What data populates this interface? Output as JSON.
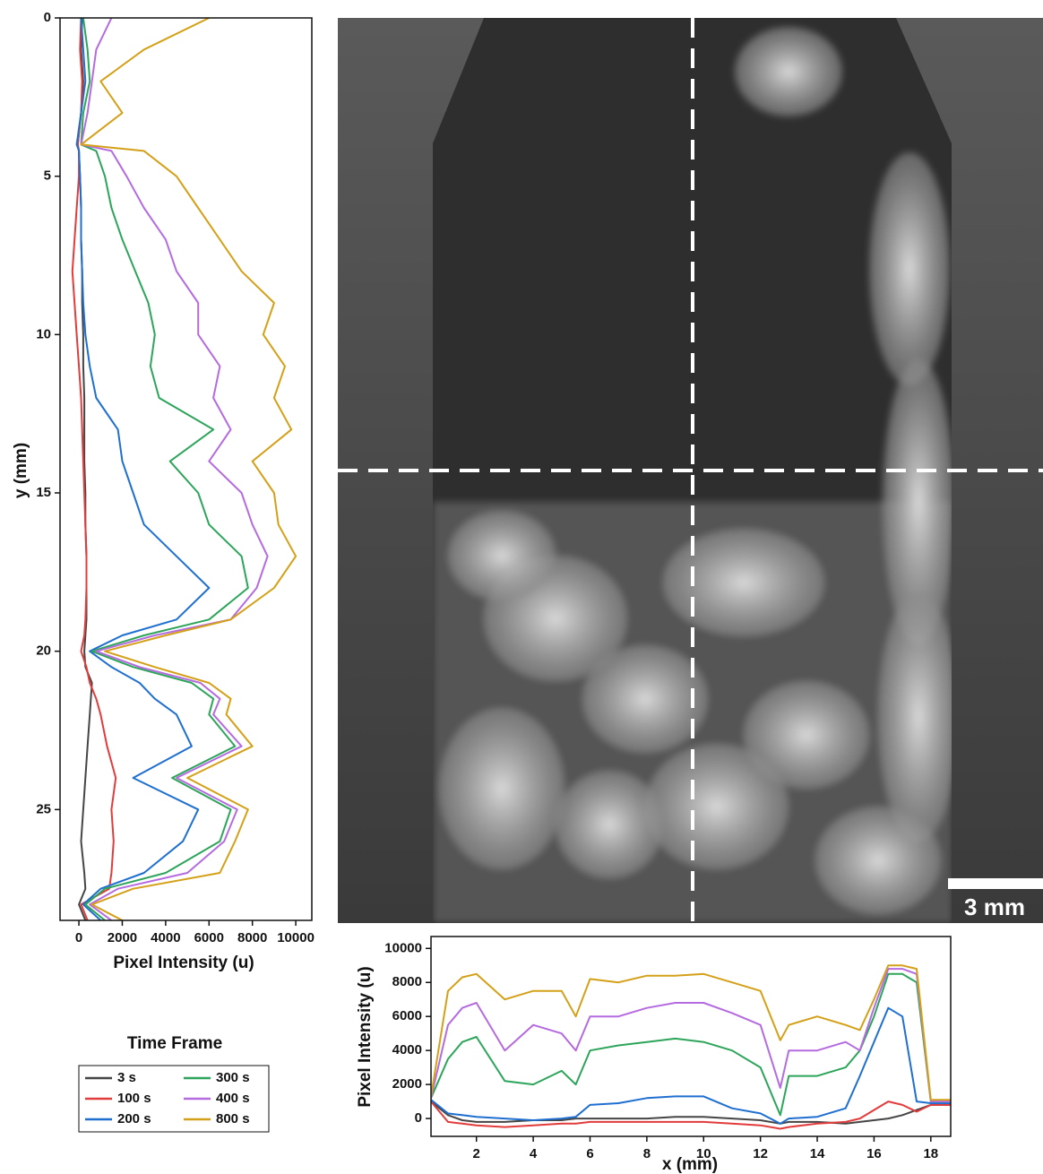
{
  "chart_data": [
    {
      "type": "line",
      "x_label": "Pixel Intensity (u)",
      "y_label": "y (mm)",
      "y": [
        0,
        1,
        2,
        3,
        4,
        4.2,
        5,
        6,
        7,
        8,
        9,
        10,
        11,
        12,
        13,
        14,
        15,
        16,
        17,
        18,
        19,
        19.5,
        20,
        20.5,
        21,
        21.5,
        22,
        23,
        24,
        25,
        26,
        27,
        27.5,
        28,
        28.5
      ],
      "xlim": [
        -870,
        10740
      ],
      "xticks": [
        0,
        2000,
        4000,
        6000,
        8000,
        10000
      ],
      "ylim": [
        0,
        28.5
      ],
      "yticks": [
        0,
        5,
        10,
        15,
        20,
        25
      ],
      "invert_y": true,
      "legend_title": "Time Frame",
      "series": [
        {
          "name": "3 s",
          "color": "#454545",
          "values": [
            150,
            100,
            200,
            100,
            -50,
            0,
            50,
            100,
            100,
            150,
            150,
            200,
            200,
            250,
            250,
            250,
            300,
            300,
            350,
            350,
            350,
            300,
            250,
            300,
            600,
            550,
            500,
            400,
            300,
            200,
            100,
            250,
            300,
            0,
            300
          ]
        },
        {
          "name": "100 s",
          "color": "#e23b3b",
          "values": [
            100,
            50,
            150,
            100,
            -50,
            0,
            0,
            -100,
            -200,
            -300,
            -200,
            -100,
            0,
            100,
            150,
            200,
            250,
            300,
            350,
            350,
            300,
            250,
            100,
            350,
            500,
            800,
            1000,
            1300,
            1700,
            1500,
            1600,
            1500,
            1400,
            100,
            400
          ]
        },
        {
          "name": "200 s",
          "color": "#1f6fd0",
          "values": [
            100,
            200,
            300,
            100,
            -100,
            0,
            50,
            100,
            100,
            150,
            200,
            300,
            500,
            800,
            1800,
            2000,
            2500,
            3000,
            4500,
            6000,
            4500,
            2000,
            500,
            1500,
            2800,
            3500,
            4500,
            5200,
            2500,
            5500,
            4800,
            3000,
            1000,
            200,
            1000
          ]
        },
        {
          "name": "300 s",
          "color": "#2ca55a",
          "values": [
            200,
            400,
            500,
            200,
            100,
            800,
            1200,
            1500,
            2000,
            2600,
            3200,
            3500,
            3300,
            3700,
            6200,
            4200,
            5500,
            6000,
            7500,
            7800,
            6000,
            3000,
            600,
            2500,
            5200,
            6200,
            6000,
            7200,
            4300,
            7000,
            6500,
            4000,
            1200,
            300,
            1200
          ]
        },
        {
          "name": "400 s",
          "color": "#b56be0",
          "values": [
            1500,
            800,
            600,
            400,
            100,
            1500,
            2200,
            3000,
            4000,
            4500,
            5500,
            5500,
            6500,
            6200,
            7000,
            6000,
            7500,
            8000,
            8700,
            8200,
            7000,
            3500,
            800,
            2800,
            5600,
            6500,
            6200,
            7500,
            4500,
            7300,
            6700,
            5000,
            1800,
            500,
            1500
          ]
        },
        {
          "name": "800 s",
          "color": "#d4a017",
          "values": [
            6000,
            3000,
            1000,
            2000,
            100,
            3000,
            4500,
            5500,
            6500,
            7500,
            9000,
            8500,
            9500,
            9000,
            9800,
            8000,
            9000,
            9200,
            10000,
            9000,
            7000,
            4000,
            1200,
            3500,
            6000,
            7000,
            6800,
            8000,
            5000,
            7800,
            7200,
            6500,
            2500,
            600,
            2000
          ]
        }
      ]
    },
    {
      "type": "line",
      "x_label": "x (mm)",
      "y_label": "Pixel Intensity (u)",
      "x": [
        0.4,
        1,
        1.5,
        2,
        3,
        4,
        5,
        5.5,
        6,
        7,
        8,
        9,
        10,
        11,
        12,
        12.7,
        13,
        14,
        15,
        15.5,
        16,
        16.5,
        17,
        17.5,
        18,
        18.7
      ],
      "xlim": [
        0.4,
        18.7
      ],
      "xticks": [
        2,
        4,
        6,
        8,
        10,
        12,
        14,
        16,
        18
      ],
      "ylim": [
        -1050,
        10700
      ],
      "yticks": [
        0,
        2000,
        4000,
        6000,
        8000,
        10000
      ],
      "series": [
        {
          "color": "#454545",
          "values": [
            1000,
            200,
            -100,
            -200,
            -200,
            -100,
            -100,
            0,
            0,
            0,
            0,
            100,
            100,
            0,
            -100,
            -300,
            -200,
            -200,
            -300,
            -200,
            -100,
            0,
            200,
            500,
            800,
            800
          ]
        },
        {
          "color": "#e23b3b",
          "values": [
            1000,
            -200,
            -300,
            -400,
            -500,
            -400,
            -300,
            -300,
            -200,
            -200,
            -200,
            -200,
            -200,
            -300,
            -400,
            -600,
            -500,
            -300,
            -200,
            0,
            500,
            1000,
            800,
            400,
            800,
            800
          ]
        },
        {
          "color": "#1f6fd0",
          "values": [
            1100,
            300,
            200,
            100,
            0,
            -100,
            0,
            100,
            800,
            900,
            1200,
            1300,
            1300,
            600,
            300,
            -300,
            0,
            100,
            600,
            2500,
            4500,
            6500,
            6000,
            1000,
            900,
            900
          ]
        },
        {
          "color": "#2ca55a",
          "values": [
            1200,
            3500,
            4500,
            4800,
            2200,
            2000,
            2800,
            2000,
            4000,
            4300,
            4500,
            4700,
            4500,
            4000,
            3000,
            200,
            2500,
            2500,
            3000,
            4000,
            6000,
            8500,
            8500,
            8000,
            1000,
            1000
          ]
        },
        {
          "color": "#b56be0",
          "values": [
            1200,
            5500,
            6500,
            6800,
            4000,
            5500,
            5000,
            4000,
            6000,
            6000,
            6500,
            6800,
            6800,
            6200,
            5500,
            1800,
            4000,
            4000,
            4500,
            4000,
            6500,
            8800,
            8800,
            8500,
            1000,
            1000
          ]
        },
        {
          "color": "#d4a017",
          "values": [
            1300,
            7500,
            8300,
            8500,
            7000,
            7500,
            7500,
            6000,
            8200,
            8000,
            8400,
            8400,
            8500,
            8000,
            7500,
            4600,
            5500,
            6000,
            5500,
            5200,
            7000,
            9000,
            9000,
            8800,
            1100,
            1100
          ]
        }
      ]
    }
  ],
  "image": {
    "scale_bar_label": "3 mm"
  }
}
